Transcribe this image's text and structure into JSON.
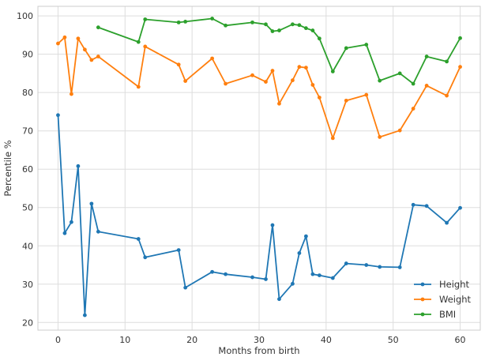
{
  "chart_data": {
    "type": "line",
    "title": "",
    "xlabel": "Months from birth",
    "ylabel": "Percentile %",
    "xlim": [
      -3,
      63
    ],
    "ylim": [
      18,
      102.5
    ],
    "xticks": [
      0,
      10,
      20,
      30,
      40,
      50,
      60
    ],
    "yticks": [
      20,
      30,
      40,
      50,
      60,
      70,
      80,
      90,
      100
    ],
    "grid": true,
    "legend_position": "bottom-right",
    "series": [
      {
        "name": "Height",
        "color": "#1f77b4",
        "x": [
          0,
          1,
          2,
          3,
          4,
          5,
          6,
          12,
          13,
          18,
          19,
          23,
          25,
          29,
          31,
          32,
          33,
          35,
          36,
          37,
          38,
          39,
          41,
          43,
          46,
          48,
          51,
          53,
          55,
          58,
          60
        ],
        "y": [
          74.1,
          43.3,
          46.2,
          60.8,
          21.9,
          51.0,
          43.7,
          41.8,
          37.0,
          38.9,
          29.1,
          33.2,
          32.6,
          31.8,
          31.3,
          45.4,
          26.1,
          30.1,
          38.1,
          42.5,
          32.6,
          32.3,
          31.6,
          35.4,
          35.0,
          34.5,
          34.4,
          50.7,
          50.4,
          46.0,
          49.9
        ]
      },
      {
        "name": "Weight",
        "color": "#ff7f0e",
        "x": [
          0,
          1,
          2,
          3,
          4,
          5,
          6,
          12,
          13,
          18,
          19,
          23,
          25,
          29,
          31,
          32,
          33,
          35,
          36,
          37,
          38,
          39,
          41,
          43,
          46,
          48,
          51,
          53,
          55,
          58,
          60
        ],
        "y": [
          92.8,
          94.4,
          79.6,
          94.1,
          91.2,
          88.5,
          89.4,
          81.5,
          92.0,
          87.3,
          83.0,
          88.9,
          82.3,
          84.5,
          82.8,
          85.7,
          77.1,
          83.2,
          86.7,
          86.5,
          82.0,
          78.7,
          68.1,
          77.9,
          79.4,
          68.4,
          70.1,
          75.8,
          81.8,
          79.2,
          86.7
        ]
      },
      {
        "name": "BMI",
        "color": "#2ca02c",
        "x": [
          6,
          12,
          13,
          18,
          19,
          23,
          25,
          29,
          31,
          32,
          33,
          35,
          36,
          37,
          38,
          39,
          41,
          43,
          46,
          48,
          51,
          53,
          55,
          58,
          60
        ],
        "y": [
          97.0,
          93.2,
          99.1,
          98.3,
          98.5,
          99.3,
          97.5,
          98.3,
          97.8,
          96.0,
          96.2,
          97.8,
          97.6,
          96.8,
          96.2,
          94.1,
          85.5,
          91.6,
          92.5,
          83.1,
          85.0,
          82.3,
          89.4,
          88.1,
          94.2
        ]
      }
    ]
  }
}
